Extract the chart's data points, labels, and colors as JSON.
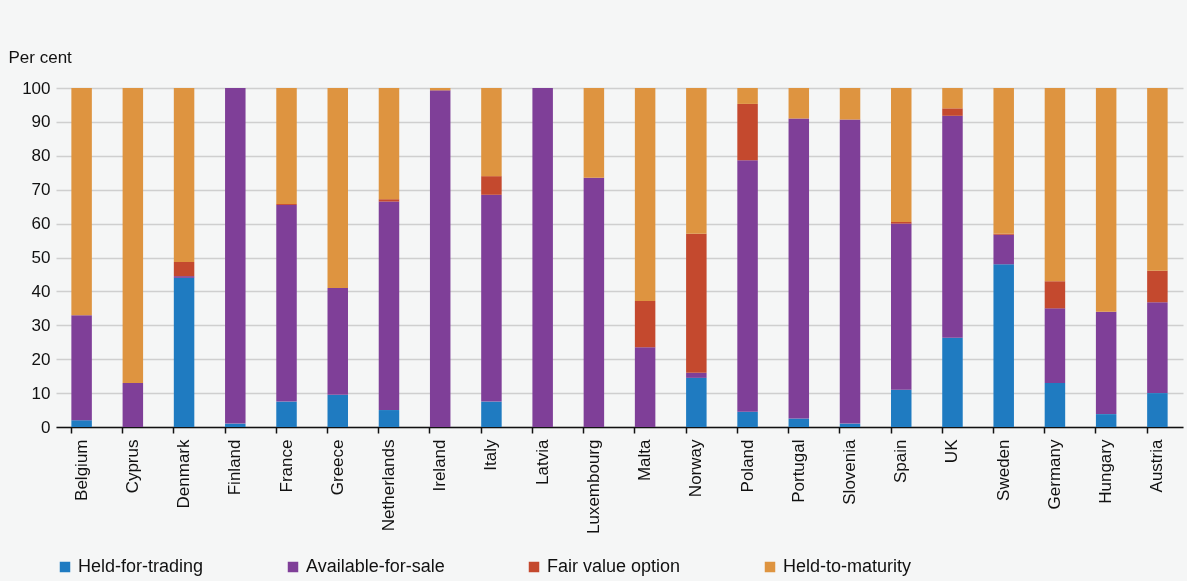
{
  "chart_data": {
    "type": "bar",
    "stacked": true,
    "ylabel": "Per cent",
    "categories": [
      "Belgium",
      "Cyprus",
      "Denmark",
      "Finland",
      "France",
      "Greece",
      "Netherlands",
      "Ireland",
      "Italy",
      "Latvia",
      "Luxembourg",
      "Malta",
      "Norway",
      "Poland",
      "Portugal",
      "Slovenia",
      "Spain",
      "UK",
      "Sweden",
      "Germany",
      "Hungary",
      "Austria"
    ],
    "series": [
      {
        "name": "Held-for-trading",
        "color": "#1f7bc1",
        "values": [
          2,
          0,
          44,
          1,
          7.5,
          9.5,
          5,
          0,
          7.5,
          0,
          0,
          0,
          14.5,
          4.5,
          2.5,
          1,
          11,
          26.3,
          48,
          13,
          3.8,
          10
        ]
      },
      {
        "name": "Available-for-sale",
        "color": "#7f3f98",
        "values": [
          31,
          13,
          0.5,
          99,
          58,
          31.5,
          61.5,
          99.3,
          61,
          100,
          73.5,
          23.5,
          1.5,
          74.2,
          88.5,
          89.7,
          49,
          65.5,
          8.7,
          22,
          30.2,
          26.8
        ]
      },
      {
        "name": "Fair value option",
        "color": "#c4492e",
        "values": [
          0,
          0,
          4.2,
          0,
          0.3,
          0,
          0.7,
          0,
          5.5,
          0,
          0,
          13.7,
          41,
          16.6,
          0,
          0,
          0.5,
          2.2,
          0.3,
          8,
          0,
          9.3
        ]
      },
      {
        "name": "Held-to-maturity",
        "color": "#de9440",
        "values": [
          67,
          87,
          51.3,
          0,
          34.2,
          59,
          32.8,
          0.7,
          26,
          0,
          26.5,
          62.8,
          43,
          4.7,
          9,
          9.3,
          39.5,
          6,
          43,
          57,
          66,
          53.9
        ]
      }
    ],
    "ylim": [
      0,
      100
    ],
    "yticks": [
      0,
      10,
      20,
      30,
      40,
      50,
      60,
      70,
      80,
      90,
      100
    ],
    "grid": "y",
    "legend": "bottom"
  }
}
